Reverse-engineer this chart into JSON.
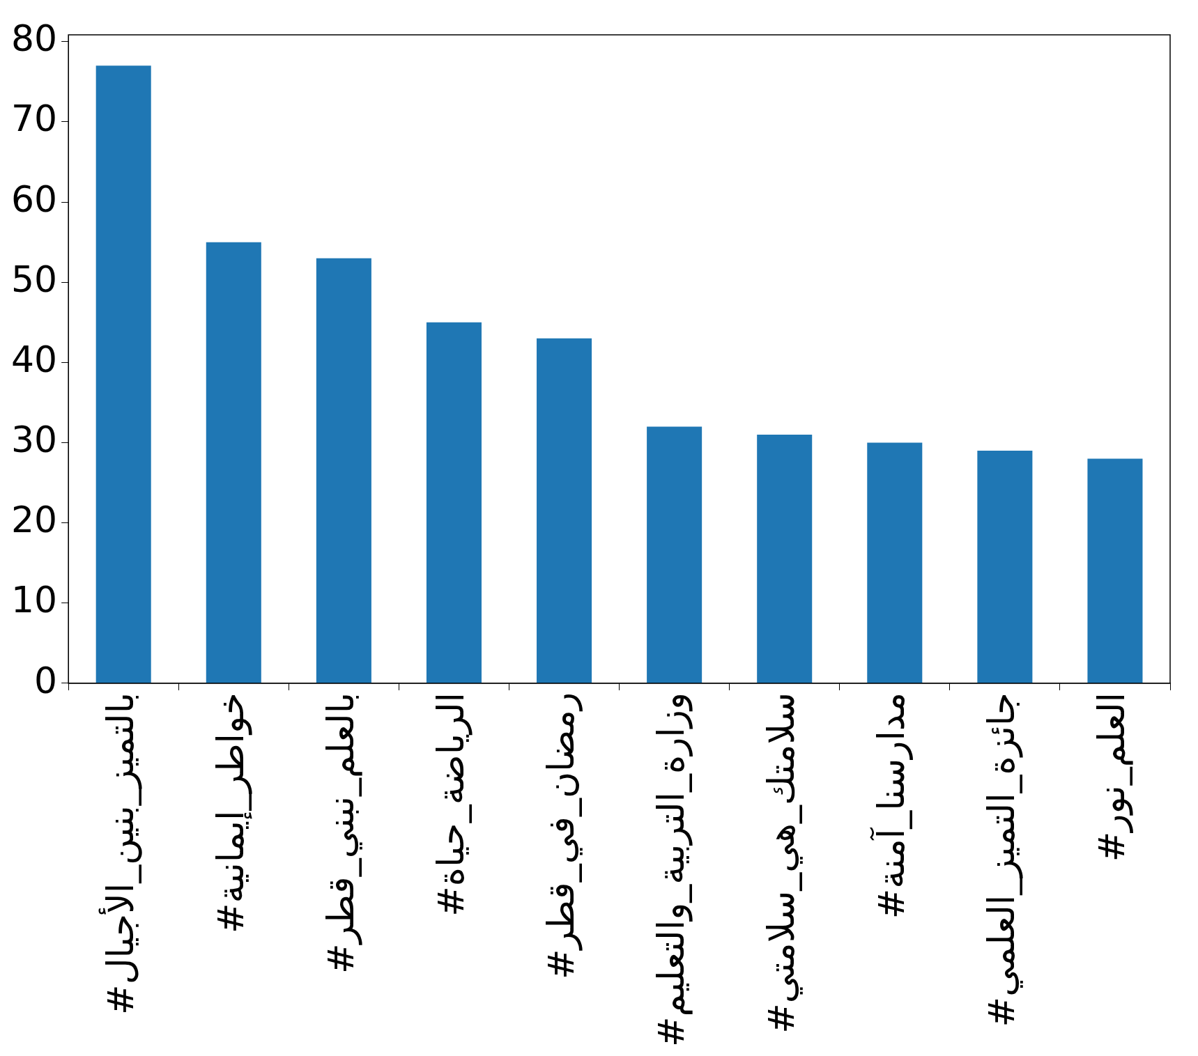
{
  "chart_data": {
    "type": "bar",
    "categories": [
      "#بالتميز_بنين_الأجيال",
      "#خواطر_إيمانية",
      "#بالعلم_نبني_قطر",
      "#الرياضة_حياة",
      "#رمضان_في_قطر",
      "#وزارة_التربية_والتعليم",
      "#سلامتك_هي_سلامتي",
      "#مدارسنا_آمنة",
      "#جائزة_التميز_العلمي",
      "#العلم_نور"
    ],
    "values": [
      77,
      55,
      53,
      45,
      43,
      32,
      31,
      30,
      29,
      28
    ],
    "color": "#1f77b4",
    "ylim": [
      0,
      80.85
    ],
    "yticks": [
      0,
      10,
      20,
      30,
      40,
      50,
      60,
      70,
      80
    ],
    "grid": false,
    "legend": false
  }
}
